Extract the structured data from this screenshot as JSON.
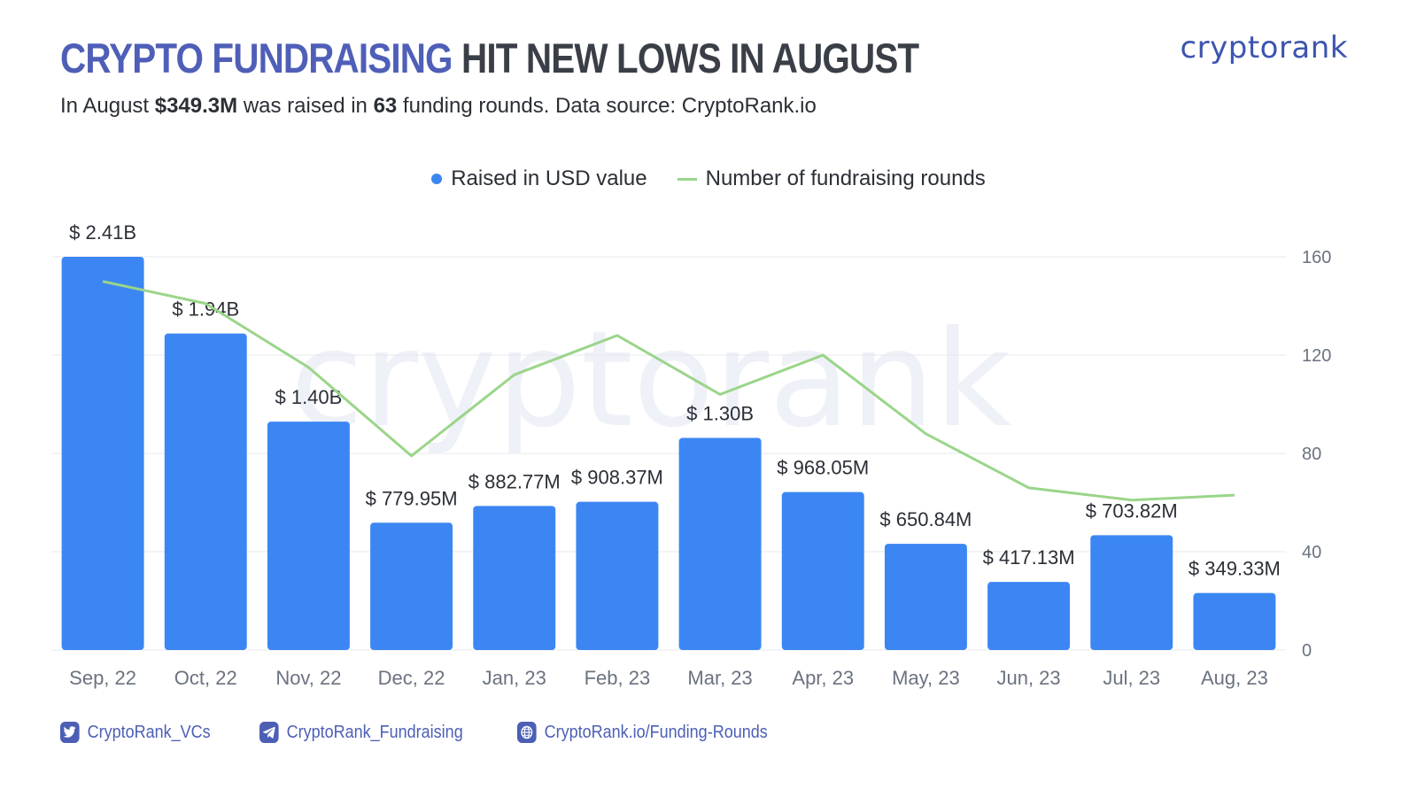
{
  "header": {
    "title_accent": "CRYPTO FUNDRAISING",
    "title_rest": " HIT NEW LOWS IN AUGUST",
    "subtitle_prefix": "In August ",
    "subtitle_amount": "$349.3M",
    "subtitle_mid": " was raised in ",
    "subtitle_rounds": "63",
    "subtitle_suffix": " funding rounds. Data source: CryptoRank.io",
    "logo_text": "cryptorank"
  },
  "legend": {
    "bars_label": "Raised in USD value",
    "line_label": "Number of fundraising rounds"
  },
  "watermark": "cryptorank",
  "colors": {
    "bar": "#3b86f2",
    "line": "#9bd58a",
    "accent": "#4f5fb8",
    "grid": "#e6e8ee"
  },
  "chart_data": {
    "type": "bar",
    "categories": [
      "Sep, 22",
      "Oct, 22",
      "Nov, 22",
      "Dec, 22",
      "Jan, 23",
      "Feb, 23",
      "Mar, 23",
      "Apr, 23",
      "May, 23",
      "Jun, 23",
      "Jul, 23",
      "Aug, 23"
    ],
    "series": [
      {
        "name": "Raised in USD value",
        "type": "bar",
        "values": [
          2410,
          1940,
          1400,
          779.95,
          882.77,
          908.37,
          1300,
          968.05,
          650.84,
          417.13,
          703.82,
          349.33
        ],
        "labels": [
          "$ 2.41B",
          "$ 1.94B",
          "$ 1.40B",
          "$ 779.95M",
          "$ 882.77M",
          "$ 908.37M",
          "$ 1.30B",
          "$ 968.05M",
          "$ 650.84M",
          "$ 417.13M",
          "$ 703.82M",
          "$ 349.33M"
        ]
      },
      {
        "name": "Number of fundraising rounds",
        "type": "line",
        "values": [
          150,
          141,
          115,
          79,
          112,
          128,
          104,
          120,
          88,
          66,
          61,
          63
        ]
      }
    ],
    "bar_ylim": [
      0,
      2410
    ],
    "y2lim": [
      0,
      160
    ],
    "y2ticks": [
      0,
      40,
      80,
      120,
      160
    ],
    "grid": true,
    "legend_position": "top-center"
  },
  "footer": {
    "twitter": "CryptoRank_VCs",
    "telegram": "CryptoRank_Fundraising",
    "website": "CryptoRank.io/Funding-Rounds"
  }
}
